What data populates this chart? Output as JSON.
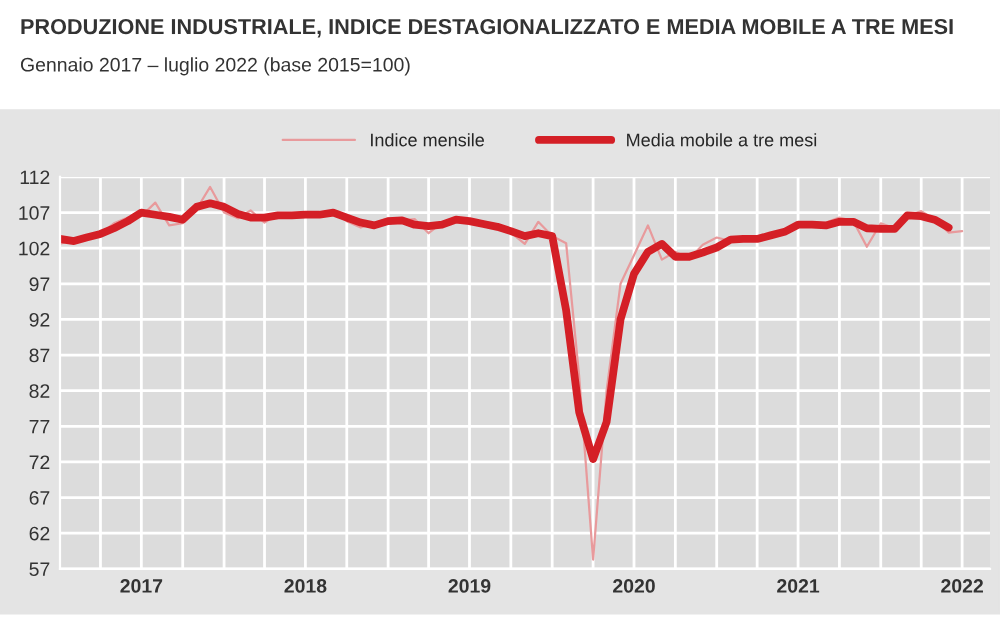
{
  "chart_data": {
    "type": "line",
    "title": "PRODUZIONE INDUSTRIALE, INDICE DESTAGIONALIZZATO E MEDIA MOBILE A TRE MESI",
    "subtitle": "Gennaio 2017 – luglio 2022 (base 2015=100)",
    "x": [
      "2017-01",
      "2017-02",
      "2017-03",
      "2017-04",
      "2017-05",
      "2017-06",
      "2017-07",
      "2017-08",
      "2017-09",
      "2017-10",
      "2017-11",
      "2017-12",
      "2018-01",
      "2018-02",
      "2018-03",
      "2018-04",
      "2018-05",
      "2018-06",
      "2018-07",
      "2018-08",
      "2018-09",
      "2018-10",
      "2018-11",
      "2018-12",
      "2019-01",
      "2019-02",
      "2019-03",
      "2019-04",
      "2019-05",
      "2019-06",
      "2019-07",
      "2019-08",
      "2019-09",
      "2019-10",
      "2019-11",
      "2019-12",
      "2020-01",
      "2020-02",
      "2020-03",
      "2020-04",
      "2020-05",
      "2020-06",
      "2020-07",
      "2020-08",
      "2020-09",
      "2020-10",
      "2020-11",
      "2020-12",
      "2021-01",
      "2021-02",
      "2021-03",
      "2021-04",
      "2021-05",
      "2021-06",
      "2021-07",
      "2021-08",
      "2021-09",
      "2021-10",
      "2021-11",
      "2021-12",
      "2022-01",
      "2022-02",
      "2022-03",
      "2022-04",
      "2022-05",
      "2022-06",
      "2022-07"
    ],
    "series": [
      {
        "name": "Indice mensile",
        "color": "#e89a9c",
        "values": [
          102.6,
          103.3,
          103.8,
          104.0,
          105.5,
          106.3,
          106.5,
          108.4,
          105.2,
          105.5,
          107.5,
          110.6,
          107.0,
          106.2,
          107.3,
          105.6,
          106.8,
          106.5,
          106.9,
          106.5,
          107.2,
          105.8,
          104.9,
          105.5,
          106.2,
          105.9,
          106.1,
          104.1,
          105.6,
          106.2,
          105.8,
          105.3,
          104.8,
          104.2,
          102.6,
          105.7,
          103.7,
          102.7,
          84.0,
          58.3,
          82.0,
          97.0,
          101.0,
          105.2,
          100.4,
          101.5,
          100.5,
          102.5,
          103.5,
          103.0,
          103.3,
          103.6,
          103.5,
          104.5,
          105.5,
          105.0,
          105.6,
          106.3,
          105.8,
          102.2,
          105.5,
          104.8,
          106.5,
          107.2,
          106.0,
          104.2,
          104.4
        ]
      },
      {
        "name": "Media mobile a tre mesi",
        "color": "#d41f26",
        "values": [
          103.3,
          103.0,
          103.5,
          104.0,
          104.8,
          105.8,
          107.0,
          106.7,
          106.4,
          106.0,
          107.8,
          108.3,
          107.8,
          106.8,
          106.3,
          106.3,
          106.6,
          106.6,
          106.7,
          106.7,
          107.0,
          106.3,
          105.6,
          105.2,
          105.8,
          105.9,
          105.3,
          105.1,
          105.3,
          106.0,
          105.8,
          105.4,
          105.0,
          104.4,
          103.7,
          104.1,
          103.7,
          93.3,
          79.0,
          72.4,
          77.6,
          92.0,
          98.4,
          101.5,
          102.6,
          100.8,
          100.8,
          101.4,
          102.1,
          103.2,
          103.3,
          103.3,
          103.8,
          104.3,
          105.3,
          105.3,
          105.2,
          105.7,
          105.7,
          104.8,
          104.7,
          104.7,
          106.6,
          106.5,
          106.0,
          104.9,
          null
        ]
      }
    ],
    "xlim": [
      "2017-01",
      "2022-09"
    ],
    "xticks": [
      {
        "value": "2017-04",
        "label": null
      },
      {
        "value": "2017-07",
        "label": "2017"
      },
      {
        "value": "2017-10",
        "label": null
      },
      {
        "value": "2018-01",
        "label": null
      },
      {
        "value": "2018-04",
        "label": null
      },
      {
        "value": "2018-07",
        "label": "2018"
      },
      {
        "value": "2018-10",
        "label": null
      },
      {
        "value": "2019-01",
        "label": null
      },
      {
        "value": "2019-04",
        "label": null
      },
      {
        "value": "2019-07",
        "label": "2019"
      },
      {
        "value": "2019-10",
        "label": null
      },
      {
        "value": "2020-01",
        "label": null
      },
      {
        "value": "2020-04",
        "label": null
      },
      {
        "value": "2020-07",
        "label": "2020"
      },
      {
        "value": "2020-10",
        "label": null
      },
      {
        "value": "2021-01",
        "label": null
      },
      {
        "value": "2021-04",
        "label": null
      },
      {
        "value": "2021-07",
        "label": "2021"
      },
      {
        "value": "2021-10",
        "label": null
      },
      {
        "value": "2022-01",
        "label": null
      },
      {
        "value": "2022-04",
        "label": null
      },
      {
        "value": "2022-07",
        "label": "2022"
      }
    ],
    "ylim": [
      57,
      112
    ],
    "yticks": [
      57,
      62,
      67,
      72,
      77,
      82,
      87,
      92,
      97,
      102,
      107,
      112
    ],
    "grid": true,
    "legend": "top",
    "marker": "none",
    "line_style": "solid"
  }
}
